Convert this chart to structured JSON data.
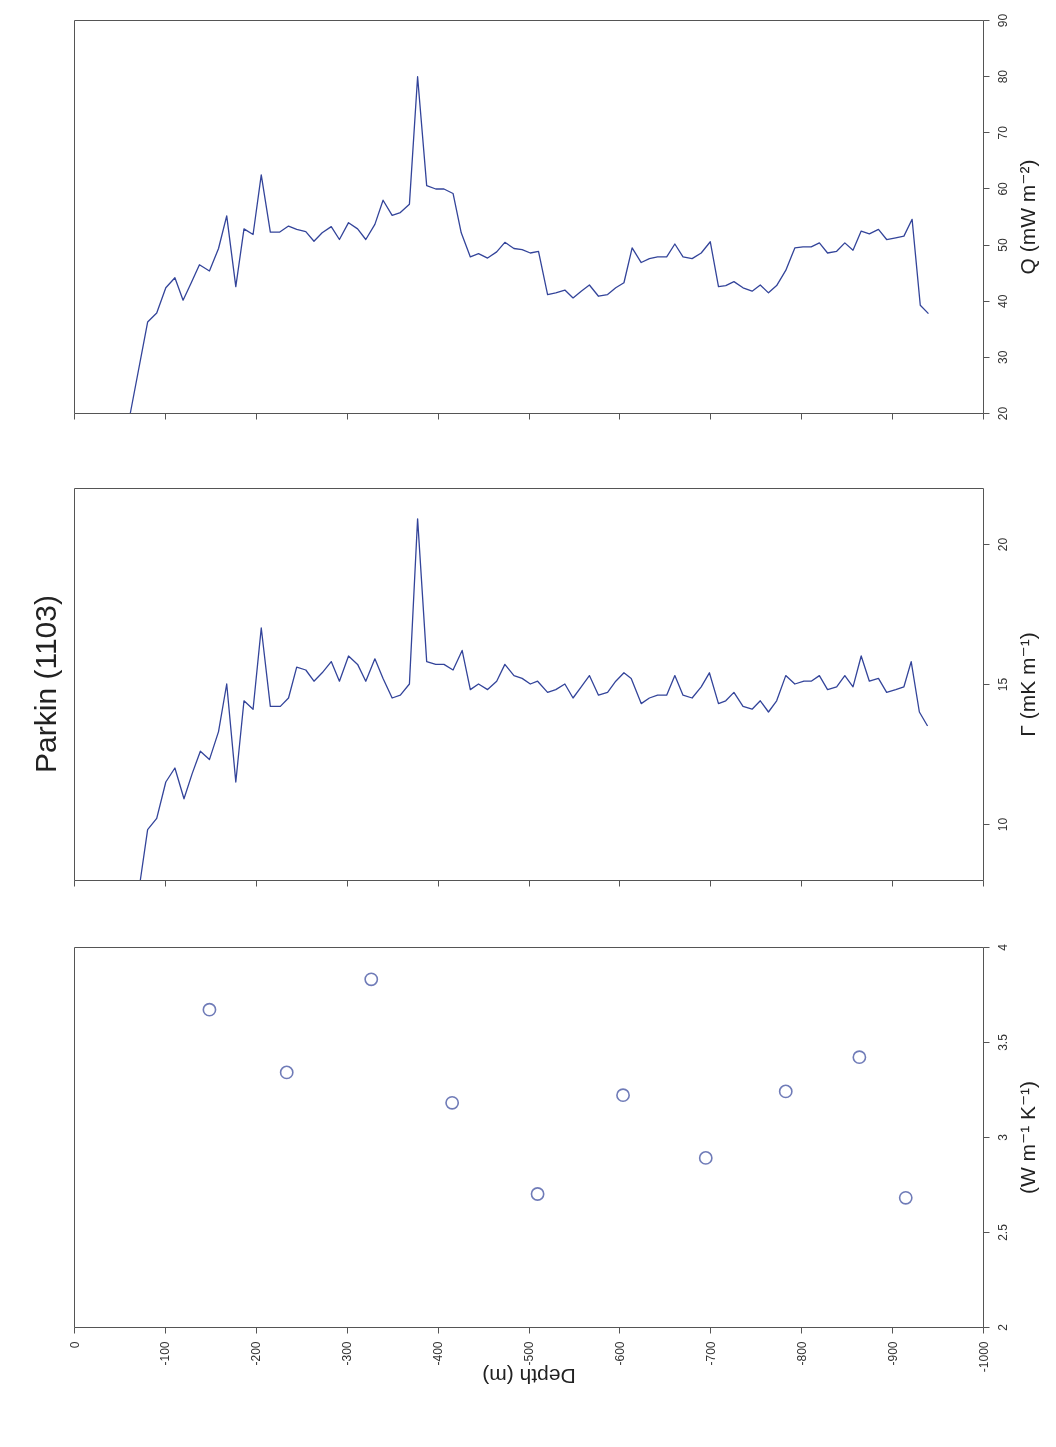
{
  "chart_data": [
    {
      "type": "line",
      "ylabel": "Q (mW m⁻²)",
      "color": "#33449a",
      "tick_labels": "y",
      "x": [
        -62,
        -81,
        -91,
        -101,
        -111,
        -120,
        -129,
        -138,
        -149,
        -159,
        -168,
        -178,
        -187,
        -197,
        -206,
        -216,
        -226,
        -236,
        -245,
        -255,
        -264,
        -273,
        -283,
        -292,
        -302,
        -312,
        -321,
        -331,
        -340,
        -350,
        -359,
        -369,
        -378,
        -388,
        -398,
        -407,
        -417,
        -426,
        -436,
        -445,
        -455,
        -465,
        -474,
        -484,
        -493,
        -502,
        -511,
        -521,
        -530,
        -540,
        -549,
        -558,
        -567,
        -577,
        -587,
        -596,
        -605,
        -614,
        -624,
        -633,
        -642,
        -652,
        -661,
        -670,
        -680,
        -690,
        -700,
        -709,
        -717,
        -726,
        -736,
        -746,
        -755,
        -764,
        -773,
        -783,
        -793,
        -802,
        -811,
        -820,
        -829,
        -839,
        -848,
        -857,
        -866,
        -875,
        -885,
        -894,
        -904,
        -913,
        -922,
        -931,
        -940
      ],
      "values": [
        20,
        36.2,
        37.8,
        42.3,
        44.1,
        40.1,
        43.2,
        46.4,
        45.3,
        49.3,
        55.1,
        42.5,
        52.8,
        51.8,
        62.4,
        52.2,
        52.2,
        53.3,
        52.7,
        52.3,
        50.6,
        52.1,
        53.2,
        50.9,
        53.9,
        52.8,
        50.9,
        53.6,
        57.9,
        55.2,
        55.7,
        57.2,
        79.9,
        60.5,
        59.9,
        59.9,
        59.1,
        52.1,
        47.8,
        48.4,
        47.6,
        48.7,
        50.4,
        49.3,
        49.1,
        48.5,
        48.8,
        41.1,
        41.4,
        41.9,
        40.5,
        41.7,
        42.8,
        40.8,
        41.1,
        42.3,
        43.2,
        49.4,
        46.8,
        47.5,
        47.8,
        47.8,
        50.1,
        47.8,
        47.5,
        48.5,
        50.5,
        42.5,
        42.7,
        43.4,
        42.3,
        41.7,
        42.8,
        41.4,
        42.7,
        45.4,
        49.4,
        49.6,
        49.6,
        50.3,
        48.5,
        48.8,
        50.3,
        49.0,
        52.4,
        51.9,
        52.7,
        50.9,
        51.2,
        51.5,
        54.5,
        39.2,
        37.7
      ],
      "xlim": [
        0,
        -1000
      ],
      "xticks": [
        0,
        -100,
        -200,
        -300,
        -400,
        -500,
        -600,
        -700,
        -800,
        -900,
        -1000
      ],
      "ylim": [
        20,
        90
      ],
      "yticks": [
        20,
        30,
        40,
        50,
        60,
        70,
        80,
        90
      ]
    },
    {
      "type": "line",
      "title": "Parkin (1103)",
      "ylabel": "Γ (mK m⁻¹)",
      "color": "#33449a",
      "tick_labels": "y",
      "x": [
        -73,
        -81,
        -91,
        -101,
        -111,
        -121,
        -130,
        -139,
        -149,
        -159,
        -168,
        -178,
        -187,
        -197,
        -206,
        -216,
        -227,
        -236,
        -245,
        -255,
        -264,
        -273,
        -283,
        -292,
        -302,
        -312,
        -321,
        -331,
        -340,
        -350,
        -359,
        -369,
        -378,
        -388,
        -398,
        -407,
        -417,
        -427,
        -436,
        -445,
        -455,
        -465,
        -474,
        -484,
        -493,
        -502,
        -510,
        -521,
        -530,
        -540,
        -549,
        -558,
        -567,
        -577,
        -587,
        -596,
        -605,
        -613,
        -624,
        -633,
        -642,
        -652,
        -661,
        -670,
        -680,
        -690,
        -699,
        -709,
        -717,
        -726,
        -736,
        -746,
        -755,
        -764,
        -773,
        -783,
        -793,
        -803,
        -811,
        -820,
        -829,
        -839,
        -848,
        -857,
        -866,
        -875,
        -885,
        -894,
        -904,
        -913,
        -921,
        -930,
        -939
      ],
      "values": [
        8.0,
        9.8,
        10.2,
        11.5,
        12.0,
        10.9,
        11.8,
        12.6,
        12.3,
        13.3,
        15.0,
        11.5,
        14.4,
        14.1,
        17.0,
        14.2,
        14.2,
        14.5,
        15.6,
        15.5,
        15.1,
        15.4,
        15.8,
        15.1,
        16.0,
        15.7,
        15.1,
        15.9,
        15.2,
        14.5,
        14.6,
        15.0,
        20.9,
        15.8,
        15.7,
        15.7,
        15.5,
        16.2,
        14.8,
        15.0,
        14.8,
        15.1,
        15.7,
        15.3,
        15.2,
        15.0,
        15.1,
        14.7,
        14.8,
        15.0,
        14.5,
        14.9,
        15.3,
        14.6,
        14.7,
        15.1,
        15.4,
        15.2,
        14.3,
        14.5,
        14.6,
        14.6,
        15.3,
        14.6,
        14.5,
        14.9,
        15.4,
        14.3,
        14.4,
        14.7,
        14.2,
        14.1,
        14.4,
        14.0,
        14.4,
        15.3,
        15.0,
        15.1,
        15.1,
        15.3,
        14.8,
        14.9,
        15.3,
        14.9,
        16.0,
        15.1,
        15.2,
        14.7,
        14.8,
        14.9,
        15.8,
        14.0,
        13.5
      ],
      "xlim": [
        0,
        -1000
      ],
      "xticks": [
        0,
        -100,
        -200,
        -300,
        -400,
        -500,
        -600,
        -700,
        -800,
        -900,
        -1000
      ],
      "ylim": [
        8,
        22
      ],
      "yticks": [
        10,
        15,
        20
      ]
    },
    {
      "type": "scatter",
      "xlabel": "Depth (m)",
      "ylabel": "(W m⁻¹ K⁻¹)",
      "marker": "circle",
      "color": "#33449a",
      "x": [
        -149,
        -234,
        -327,
        -416,
        -510,
        -604,
        -695,
        -783,
        -864,
        -915
      ],
      "values": [
        3.67,
        3.34,
        3.83,
        3.18,
        2.7,
        3.22,
        2.89,
        3.24,
        3.42,
        2.68
      ],
      "xlim": [
        0,
        -1000
      ],
      "xticks": [
        0,
        -100,
        -200,
        -300,
        -400,
        -500,
        -600,
        -700,
        -800,
        -900,
        -1000
      ],
      "ylim": [
        2,
        4
      ],
      "yticks": [
        2,
        2.5,
        3,
        3.5,
        4
      ]
    }
  ]
}
